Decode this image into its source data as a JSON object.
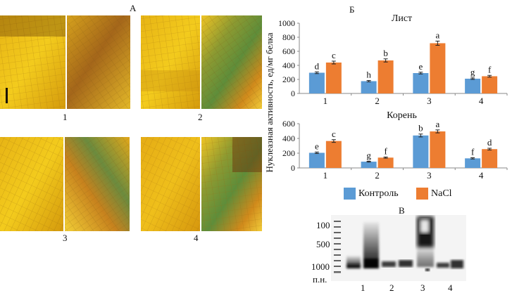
{
  "panels": {
    "a": {
      "letter": "А",
      "images": [
        {
          "number": "1",
          "desc_left": "microscopy-yellow",
          "desc_right": "microscopy-brown"
        },
        {
          "number": "2",
          "desc_left": "microscopy-yellow",
          "desc_right": "microscopy-green"
        },
        {
          "number": "3",
          "desc_left": "microscopy-yellow",
          "desc_right": "microscopy-green"
        },
        {
          "number": "4",
          "desc_left": "microscopy-yellow",
          "desc_right": "microscopy-green"
        }
      ]
    },
    "b": {
      "letter": "Б"
    },
    "c": {
      "letter": "В"
    }
  },
  "colors": {
    "control": "#5b9bd5",
    "nacl": "#ed7d31",
    "axis": "#888888"
  },
  "legend": {
    "control": "Контроль",
    "nacl": "NaCl"
  },
  "ylabel": "Нуклеазная активность, ед/мг белка",
  "chart_data": [
    {
      "type": "bar",
      "title": "Лист",
      "categories": [
        "1",
        "2",
        "3",
        "4"
      ],
      "series": [
        {
          "name": "Контроль",
          "values": [
            295,
            175,
            290,
            210
          ],
          "errors": [
            12,
            10,
            12,
            10
          ],
          "letters": [
            "d",
            "h",
            "e",
            "g"
          ]
        },
        {
          "name": "NaCl",
          "values": [
            440,
            470,
            715,
            245
          ],
          "errors": [
            20,
            22,
            30,
            12
          ],
          "letters": [
            "c",
            "b",
            "a",
            "f"
          ]
        }
      ],
      "ylim": [
        0,
        1000
      ],
      "yticks": [
        "0",
        "200",
        "400",
        "600",
        "800",
        "1000"
      ]
    },
    {
      "type": "bar",
      "title": "Корень",
      "categories": [
        "1",
        "2",
        "3",
        "4"
      ],
      "series": [
        {
          "name": "Контроль",
          "values": [
            205,
            85,
            440,
            130
          ],
          "errors": [
            10,
            6,
            20,
            8
          ],
          "letters": [
            "e",
            "g",
            "b",
            "f"
          ]
        },
        {
          "name": "NaCl",
          "values": [
            365,
            140,
            495,
            255
          ],
          "errors": [
            18,
            8,
            20,
            12
          ],
          "letters": [
            "c",
            "f",
            "a",
            "d"
          ]
        }
      ],
      "ylim": [
        0,
        600
      ],
      "yticks": [
        "0",
        "200",
        "400",
        "600"
      ]
    }
  ],
  "gel": {
    "ladder_labels": [
      "100",
      "500",
      "1000"
    ],
    "unit": "п.н.",
    "lanes": [
      "1",
      "2",
      "3",
      "4"
    ]
  }
}
